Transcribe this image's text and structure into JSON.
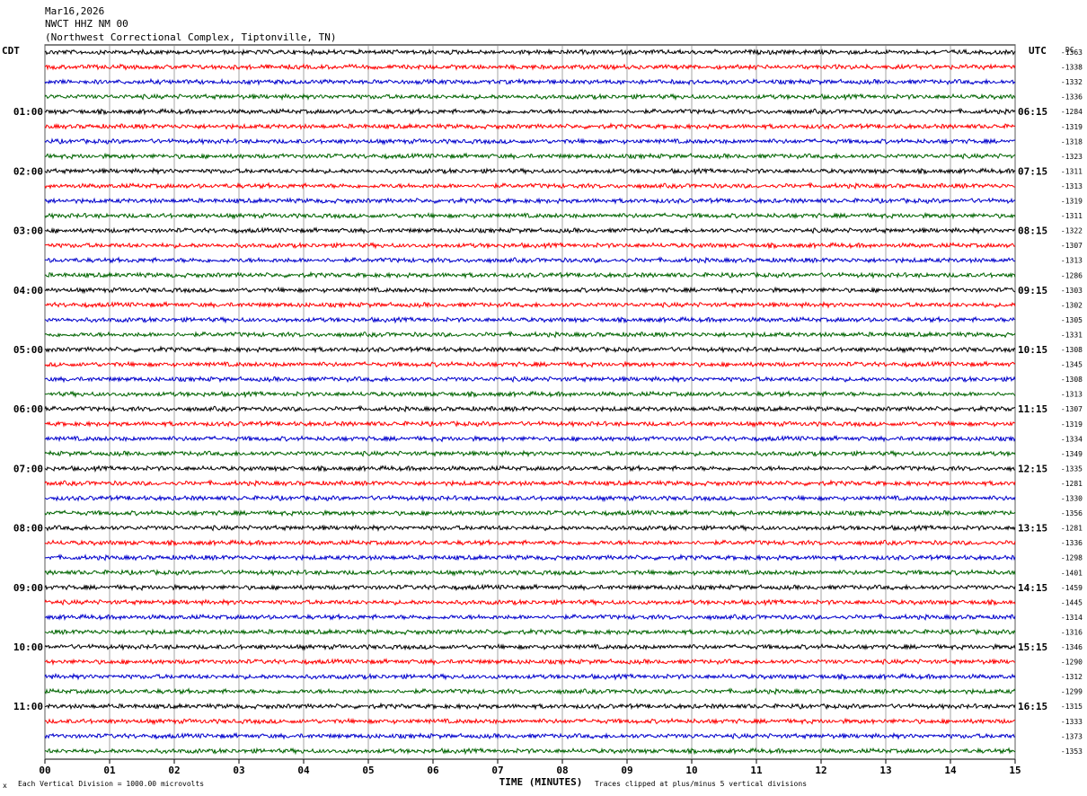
{
  "header": {
    "date": "Mar16,2026",
    "station": "NWCT HHZ NM 00",
    "location": "(Northwest Correctional Complex, Tiptonville, TN)"
  },
  "left_axis_title": "CDT",
  "right_axis_title": "UTC",
  "dc_title": "DC",
  "footer": {
    "scale_note": "Each Vertical Division = 1000.00 microvolts",
    "clip_note": "Traces clipped at plus/minus 5 vertical divisions",
    "corner_mark": "x"
  },
  "chart_data": {
    "type": "line",
    "title": "",
    "xlabel": "TIME (MINUTES)",
    "xlim": [
      0,
      15
    ],
    "x_ticks": [
      "00",
      "01",
      "02",
      "03",
      "04",
      "05",
      "06",
      "07",
      "08",
      "09",
      "10",
      "11",
      "12",
      "13",
      "14",
      "15"
    ],
    "trace_colors": [
      "#000000",
      "#ff0000",
      "#0000cc",
      "#006400"
    ],
    "left_time_labels": [
      "01:00",
      "02:00",
      "03:00",
      "04:00",
      "05:00",
      "06:00",
      "07:00",
      "08:00",
      "09:00",
      "10:00",
      "11:00"
    ],
    "right_time_labels": [
      "06:15",
      "07:15",
      "08:15",
      "09:15",
      "10:15",
      "11:15",
      "12:15",
      "13:15",
      "14:15",
      "15:15",
      "16:15"
    ],
    "hour_label_start_row": 4,
    "traces_per_hour": 4,
    "dc_offsets": [
      "-1363",
      "-1338",
      "-1332",
      "-1336",
      "-1284",
      "-1319",
      "-1318",
      "-1323",
      "-1311",
      "-1313",
      "-1319",
      "-1311",
      "-1322",
      "-1307",
      "-1313",
      "-1286",
      "-1303",
      "-1302",
      "-1305",
      "-1331",
      "-1308",
      "-1345",
      "-1308",
      "-1313",
      "-1307",
      "-1319",
      "-1334",
      "-1349",
      "-1335",
      "-1281",
      "-1330",
      "-1356",
      "-1281",
      "-1336",
      "-1298",
      "-1401",
      "-1459",
      "-1445",
      "-1314",
      "-1316",
      "-1346",
      "-1290",
      "-1312",
      "-1299",
      "-1315",
      "-1333",
      "-1373",
      "-1353"
    ]
  }
}
